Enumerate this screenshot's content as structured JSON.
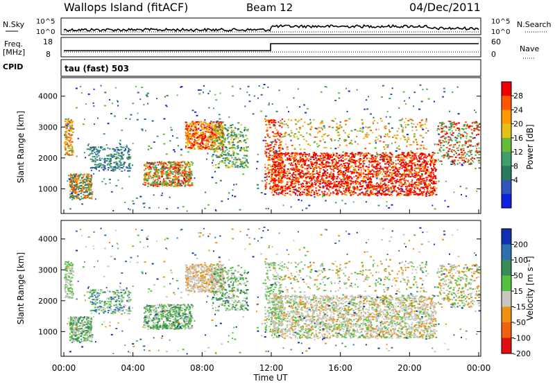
{
  "header": {
    "station": "Wallops Island (fitACF)",
    "beam": "Beam 12",
    "date": "04/Dec/2011"
  },
  "top_panels": {
    "nsky_label": "N.Sky",
    "nsearch_label": "N.Search",
    "noise_ticks": [
      "10^5",
      "10^0"
    ],
    "freq_label": "Freq.",
    "freq_unit": "[MHz]",
    "freq_ticks": [
      "18",
      "8"
    ],
    "nave_label": "Nave",
    "nave_ticks": [
      "60",
      "0"
    ],
    "cpid_label": "CPID",
    "cpid_value": "tau (fast) 503"
  },
  "chart_data": [
    {
      "type": "heatmap",
      "name": "power",
      "ylabel": "Slant Range [km]",
      "xlabel": "",
      "y_ticks": [
        1000,
        2000,
        3000,
        4000
      ],
      "ylim": [
        200,
        4600
      ],
      "colorbar": {
        "label": "Power [dB]",
        "ticks": [
          "28",
          "24",
          "20",
          "16",
          "12",
          "8",
          "4"
        ],
        "colors": [
          "#ee0000",
          "#ff5500",
          "#ff9a00",
          "#e6c01a",
          "#66bb3a",
          "#3e9f6a",
          "#2a7a5e",
          "#3355bb",
          "#1020e0"
        ]
      }
    },
    {
      "type": "heatmap",
      "name": "velocity",
      "ylabel": "Slant Range [km]",
      "xlabel": "Time UT",
      "y_ticks": [
        1000,
        2000,
        3000,
        4000
      ],
      "ylim": [
        200,
        4600
      ],
      "x_ticks": [
        "00:00",
        "04:00",
        "08:00",
        "12:00",
        "16:00",
        "20:00",
        "00:00"
      ],
      "colorbar": {
        "label": "Velocity [m s⁻¹]",
        "ticks": [
          "200",
          "100",
          "50",
          "15",
          "-15",
          "-50",
          "-100",
          "-200"
        ],
        "colors": [
          "#1030b0",
          "#2e6fae",
          "#3a8a5a",
          "#55c040",
          "#c8c8c0",
          "#f09010",
          "#f06010",
          "#e01010"
        ]
      }
    }
  ]
}
